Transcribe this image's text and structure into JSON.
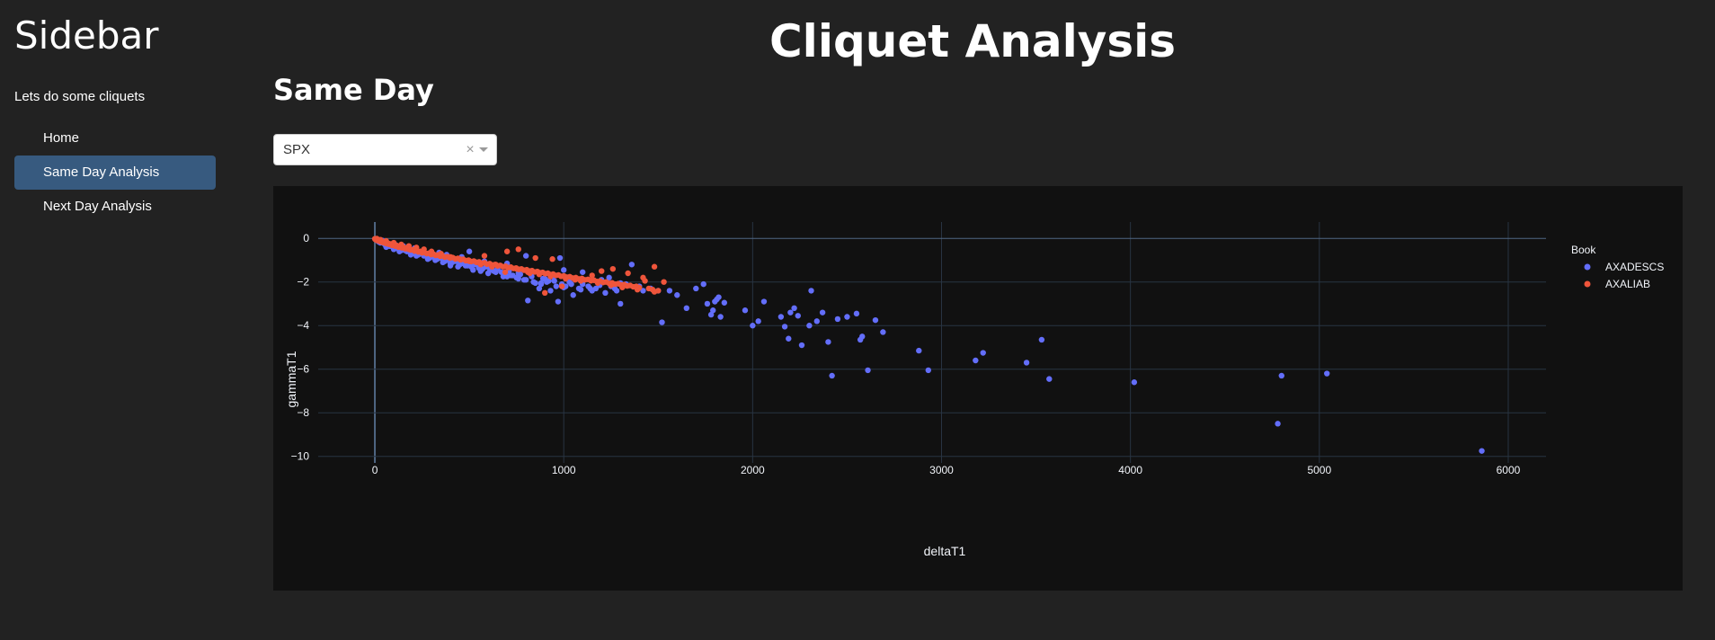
{
  "sidebar": {
    "title": "Sidebar",
    "tagline": "Lets do some cliquets",
    "items": [
      {
        "label": "Home",
        "active": false
      },
      {
        "label": "Same Day Analysis",
        "active": true
      },
      {
        "label": "Next Day Analysis",
        "active": false
      }
    ]
  },
  "main": {
    "title": "Cliquet Analysis",
    "section_title": "Same Day",
    "dropdown": {
      "value": "SPX",
      "clear_glyph": "×"
    }
  },
  "colors": {
    "background": "#222222",
    "plot_background": "#111111",
    "nav_active": "#375a7f",
    "series_axadescs": "#636efa",
    "series_axaliab": "#ef553b"
  },
  "chart_data": {
    "type": "scatter",
    "xlabel": "deltaT1",
    "ylabel": "gammaT1",
    "xlim": [
      -300,
      6200
    ],
    "ylim": [
      -10.3,
      0.75
    ],
    "xticks": [
      0,
      1000,
      2000,
      3000,
      4000,
      5000,
      6000
    ],
    "yticks": [
      0,
      -2,
      -4,
      -6,
      -8,
      -10
    ],
    "ytick_labels": [
      "0",
      "−2",
      "−4",
      "−6",
      "−8",
      "−10"
    ],
    "grid": true,
    "legend": {
      "title": "Book",
      "placement": "top-right"
    },
    "series": [
      {
        "name": "AXADESCS",
        "color": "#636efa",
        "x": [
          5,
          12,
          20,
          28,
          35,
          45,
          55,
          65,
          75,
          85,
          95,
          110,
          125,
          140,
          155,
          170,
          185,
          200,
          215,
          230,
          245,
          260,
          275,
          290,
          310,
          330,
          350,
          370,
          390,
          410,
          430,
          450,
          470,
          490,
          510,
          530,
          550,
          570,
          590,
          610,
          630,
          650,
          670,
          690,
          710,
          730,
          750,
          770,
          790,
          810,
          830,
          850,
          870,
          890,
          910,
          930,
          950,
          970,
          990,
          1010,
          1030,
          1050,
          1080,
          1100,
          1130,
          1150,
          1170,
          1200,
          1220,
          1250,
          1270,
          1300,
          1330,
          1360,
          1400,
          1420,
          1460,
          1500,
          1520,
          1560,
          1600,
          1650,
          1700,
          1740,
          1760,
          1780,
          1790,
          1800,
          1810,
          1820,
          1830,
          1850,
          1960,
          2000,
          2030,
          2060,
          2150,
          2170,
          2190,
          2200,
          2220,
          2240,
          2260,
          2300,
          2310,
          2340,
          2370,
          2400,
          2420,
          2450,
          2500,
          2550,
          2570,
          2580,
          2610,
          2650,
          2690,
          2880,
          2930,
          3180,
          3220,
          3450,
          3530,
          3570,
          4020,
          4780,
          4800,
          5040,
          5860,
          60,
          80,
          100,
          130,
          160,
          190,
          220,
          250,
          280,
          320,
          360,
          400,
          440,
          480,
          520,
          560,
          600,
          640,
          680,
          720,
          760,
          800,
          840,
          880,
          920,
          960,
          1000,
          1040,
          1090,
          1140,
          1190,
          1240,
          1280,
          400,
          500,
          600,
          700,
          800,
          900,
          1000,
          1100,
          1200,
          1300,
          20,
          40,
          70,
          110,
          150,
          210,
          340,
          380,
          460,
          580,
          620,
          700,
          760,
          820,
          880,
          940,
          980
        ],
        "y": [
          -0.05,
          -0.1,
          -0.12,
          -0.2,
          -0.15,
          -0.22,
          -0.3,
          -0.28,
          -0.35,
          -0.3,
          -0.4,
          -0.45,
          -0.4,
          -0.55,
          -0.5,
          -0.6,
          -0.58,
          -0.7,
          -0.62,
          -0.75,
          -0.7,
          -0.8,
          -0.78,
          -0.9,
          -0.85,
          -0.95,
          -0.9,
          -1.05,
          -1.0,
          -1.1,
          -1.05,
          -1.2,
          -1.15,
          -1.25,
          -1.3,
          -1.2,
          -1.35,
          -1.4,
          -1.3,
          -1.45,
          -1.5,
          -1.4,
          -1.55,
          -1.6,
          -1.5,
          -1.7,
          -1.8,
          -1.65,
          -1.9,
          -2.85,
          -1.75,
          -2.05,
          -2.3,
          -1.85,
          -2.0,
          -2.4,
          -1.95,
          -2.9,
          -2.1,
          -2.2,
          -2.0,
          -2.6,
          -2.3,
          -2.1,
          -2.2,
          -2.4,
          -2.3,
          -1.9,
          -2.5,
          -2.2,
          -2.3,
          -3.0,
          -2.1,
          -1.2,
          -2.2,
          -2.4,
          -2.3,
          -2.4,
          -3.85,
          -2.4,
          -2.6,
          -3.2,
          -2.3,
          -2.1,
          -3.0,
          -3.5,
          -3.3,
          -2.9,
          -2.8,
          -2.7,
          -3.6,
          -2.95,
          -3.3,
          -4.0,
          -3.8,
          -2.9,
          -3.6,
          -4.05,
          -4.6,
          -3.4,
          -3.2,
          -3.55,
          -4.9,
          -4.0,
          -2.4,
          -3.8,
          -3.4,
          -4.75,
          -6.3,
          -3.7,
          -3.6,
          -3.45,
          -4.65,
          -4.5,
          -6.05,
          -3.75,
          -4.3,
          -5.15,
          -6.05,
          -5.6,
          -5.25,
          -5.7,
          -4.65,
          -6.45,
          -6.6,
          -8.5,
          -6.3,
          -6.2,
          -9.75,
          -0.4,
          -0.35,
          -0.5,
          -0.6,
          -0.55,
          -0.75,
          -0.8,
          -0.7,
          -0.95,
          -1.0,
          -1.1,
          -1.15,
          -1.3,
          -1.25,
          -1.45,
          -1.5,
          -1.6,
          -1.55,
          -1.75,
          -1.7,
          -1.85,
          -1.9,
          -2.0,
          -2.05,
          -1.95,
          -2.2,
          -2.25,
          -2.1,
          -2.35,
          -2.3,
          -2.15,
          -1.8,
          -2.4,
          -1.25,
          -0.6,
          -1.6,
          -1.75,
          -0.8,
          -1.85,
          -1.45,
          -1.55,
          -2.0,
          -2.05,
          -0.15,
          -0.1,
          -0.25,
          -0.3,
          -0.35,
          -0.45,
          -0.65,
          -0.75,
          -0.85,
          -1.05,
          -1.3,
          -1.15,
          -1.6,
          -1.5,
          -2.1,
          -1.75,
          -0.9
        ]
      },
      {
        "name": "AXALIAB",
        "color": "#ef553b",
        "x": [
          0,
          3,
          6,
          9,
          12,
          15,
          18,
          22,
          26,
          30,
          35,
          40,
          45,
          50,
          55,
          60,
          66,
          72,
          78,
          85,
          92,
          100,
          108,
          116,
          125,
          134,
          143,
          152,
          161,
          170,
          180,
          190,
          200,
          210,
          220,
          230,
          240,
          250,
          262,
          274,
          286,
          298,
          310,
          322,
          334,
          346,
          358,
          370,
          384,
          398,
          412,
          426,
          440,
          454,
          468,
          482,
          496,
          510,
          524,
          538,
          552,
          566,
          580,
          594,
          608,
          622,
          636,
          650,
          664,
          678,
          692,
          706,
          720,
          734,
          748,
          762,
          776,
          790,
          804,
          818,
          832,
          846,
          860,
          874,
          888,
          902,
          916,
          930,
          944,
          958,
          972,
          986,
          1000,
          1016,
          1032,
          1048,
          1064,
          1080,
          1096,
          1112,
          1128,
          1144,
          1160,
          1176,
          1192,
          1208,
          1224,
          1240,
          1256,
          1272,
          1288,
          1304,
          1320,
          1336,
          1352,
          1368,
          1384,
          1400,
          1430,
          1450,
          1470,
          1480,
          1500,
          1530,
          760,
          850,
          940,
          700,
          640,
          580,
          1260,
          1340,
          1420,
          1200,
          1150,
          1060,
          990,
          900,
          820,
          750,
          690,
          620,
          560,
          500,
          450,
          400,
          350,
          300,
          260,
          220,
          180,
          140,
          100,
          60,
          30,
          10,
          1480,
          1390,
          1310,
          1250,
          1180,
          1090,
          1010,
          930,
          870,
          810
        ],
        "y": [
          -0.02,
          -0.05,
          -0.03,
          -0.08,
          -0.06,
          -0.1,
          -0.09,
          -0.12,
          -0.1,
          -0.15,
          -0.13,
          -0.18,
          -0.16,
          -0.2,
          -0.22,
          -0.19,
          -0.25,
          -0.23,
          -0.28,
          -0.26,
          -0.32,
          -0.3,
          -0.35,
          -0.33,
          -0.4,
          -0.38,
          -0.43,
          -0.41,
          -0.47,
          -0.45,
          -0.5,
          -0.53,
          -0.52,
          -0.58,
          -0.55,
          -0.62,
          -0.6,
          -0.66,
          -0.64,
          -0.7,
          -0.68,
          -0.74,
          -0.72,
          -0.78,
          -0.76,
          -0.82,
          -0.8,
          -0.86,
          -0.84,
          -0.9,
          -0.88,
          -0.94,
          -0.92,
          -0.98,
          -0.96,
          -1.02,
          -1.0,
          -1.06,
          -1.04,
          -1.1,
          -1.08,
          -1.14,
          -1.12,
          -1.18,
          -1.16,
          -1.22,
          -1.2,
          -1.26,
          -1.24,
          -1.3,
          -1.28,
          -1.34,
          -1.32,
          -1.38,
          -1.36,
          -1.42,
          -1.4,
          -1.46,
          -1.44,
          -1.5,
          -1.48,
          -1.54,
          -1.52,
          -1.58,
          -1.56,
          -1.62,
          -1.6,
          -1.66,
          -1.64,
          -1.7,
          -1.68,
          -1.74,
          -1.72,
          -1.78,
          -1.76,
          -1.82,
          -1.8,
          -1.86,
          -1.84,
          -1.9,
          -1.88,
          -1.94,
          -1.92,
          -1.98,
          -1.96,
          -2.02,
          -2.0,
          -2.06,
          -2.04,
          -2.1,
          -2.08,
          -2.14,
          -2.12,
          -2.18,
          -2.16,
          -2.22,
          -2.2,
          -2.26,
          -1.95,
          -2.3,
          -2.35,
          -1.3,
          -2.4,
          -2.0,
          -0.5,
          -0.9,
          -0.95,
          -0.6,
          -1.2,
          -0.8,
          -1.4,
          -1.6,
          -1.8,
          -1.5,
          -1.7,
          -1.9,
          -2.2,
          -2.5,
          -1.6,
          -1.4,
          -1.55,
          -1.3,
          -1.2,
          -1.05,
          -0.95,
          -0.85,
          -0.7,
          -0.6,
          -0.5,
          -0.42,
          -0.35,
          -0.28,
          -0.2,
          -0.12,
          -0.06,
          -0.01,
          -2.45,
          -2.35,
          -2.25,
          -2.15,
          -2.05,
          -1.95,
          -1.85,
          -1.75,
          -1.65,
          -1.55
        ]
      }
    ]
  }
}
